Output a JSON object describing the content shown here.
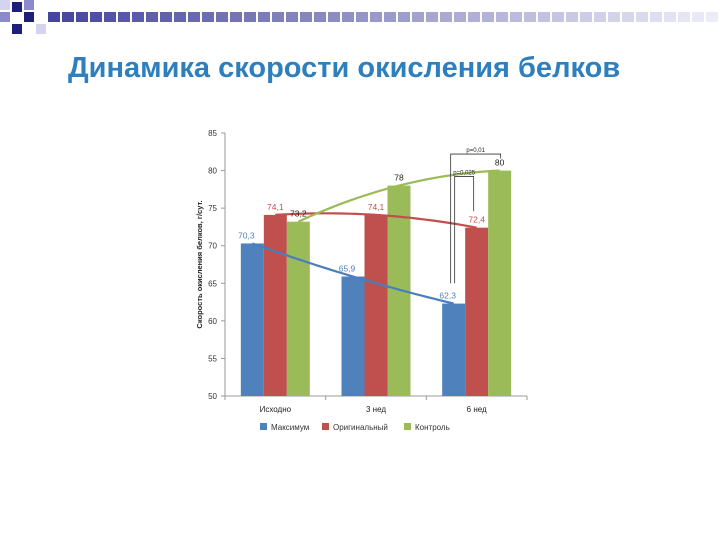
{
  "slide": {
    "title": "Динамика скорости окисления белков"
  },
  "colors": {
    "title": "#2e7fbd",
    "deco_dark": "#1f1f7a",
    "deco_mid": "#8a8acc",
    "deco_light": "#d4d4ee"
  },
  "chart_data": {
    "type": "bar",
    "title": "",
    "xlabel": "",
    "ylabel": "Скорость окисления белков, г/сут.",
    "ylim": [
      50,
      85
    ],
    "yticks": [
      50,
      55,
      60,
      65,
      70,
      75,
      80,
      85
    ],
    "grid": false,
    "legend_position": "bottom",
    "categories": [
      "Исходно",
      "3 нед",
      "6 нед"
    ],
    "series": [
      {
        "name": "Максимум",
        "color": "#4f81bd",
        "label_color": "#4f81bd",
        "values": [
          70.3,
          65.9,
          62.3
        ],
        "labels": [
          "70,3",
          "65,9",
          "62,3"
        ]
      },
      {
        "name": "Оригинальный",
        "color": "#c0504d",
        "label_color": "#c0504d",
        "values": [
          74.1,
          74.1,
          72.4
        ],
        "labels": [
          "74,1",
          "74,1",
          "72,4"
        ]
      },
      {
        "name": "Контроль",
        "color": "#9bbb59",
        "label_color": "#222222",
        "values": [
          73.2,
          78,
          80
        ],
        "labels": [
          "73,2",
          "78",
          "80"
        ]
      }
    ],
    "annotations": [
      {
        "text": "р=0,01",
        "between": [
          "Максимум",
          "Контроль"
        ],
        "category": "6 нед"
      },
      {
        "text": "р=0,025",
        "between": [
          "Максимум",
          "Оригинальный"
        ],
        "category": "6 нед"
      }
    ]
  }
}
